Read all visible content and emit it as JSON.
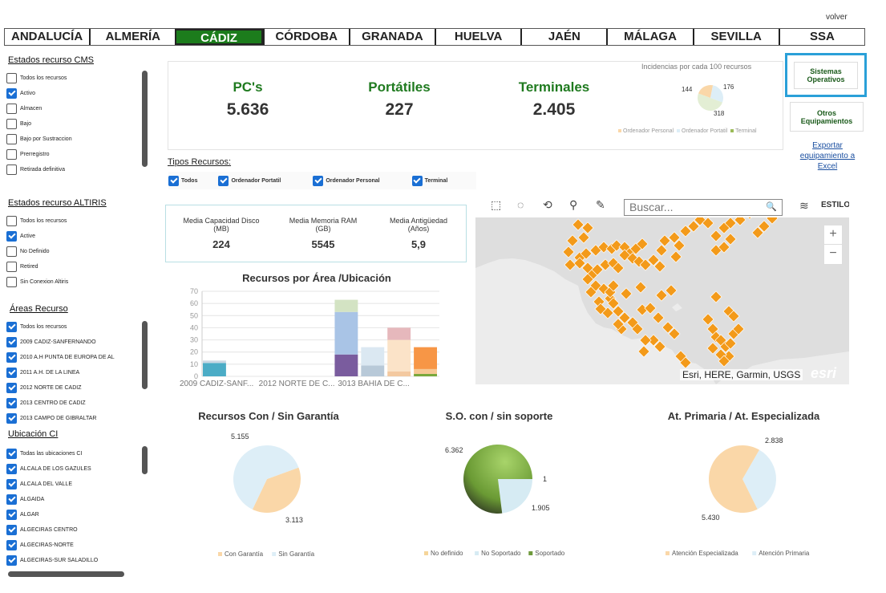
{
  "header": {
    "back_link": "volver"
  },
  "tabs": [
    {
      "label": "ANDALUCÍA",
      "active": false
    },
    {
      "label": "ALMERÍA",
      "active": false
    },
    {
      "label": "CÁDIZ",
      "active": true
    },
    {
      "label": "CÓRDOBA",
      "active": false
    },
    {
      "label": "GRANADA",
      "active": false
    },
    {
      "label": "HUELVA",
      "active": false
    },
    {
      "label": "JAÉN",
      "active": false
    },
    {
      "label": "MÁLAGA",
      "active": false
    },
    {
      "label": "SEVILLA",
      "active": false
    },
    {
      "label": "SSA",
      "active": false
    }
  ],
  "filters": {
    "cms": {
      "title": "Estados recurso CMS",
      "items": [
        {
          "label": "Todos los recursos",
          "checked": false
        },
        {
          "label": "Activo",
          "checked": true
        },
        {
          "label": "Almacen",
          "checked": false
        },
        {
          "label": "Bajo",
          "checked": false
        },
        {
          "label": "Bajo por Sustraccion",
          "checked": false
        },
        {
          "label": "Prerregistro",
          "checked": false
        },
        {
          "label": "Retirada definitiva",
          "checked": false
        }
      ]
    },
    "altiris": {
      "title": "Estados recurso ALTIRIS",
      "items": [
        {
          "label": "Todos los recursos",
          "checked": false
        },
        {
          "label": "Active",
          "checked": true
        },
        {
          "label": "No Definido",
          "checked": false
        },
        {
          "label": "Retired",
          "checked": false
        },
        {
          "label": "Sin Conexion Altiris",
          "checked": false
        }
      ]
    },
    "areas": {
      "title": "Áreas Recurso",
      "items": [
        {
          "label": "Todos los recursos",
          "checked": true
        },
        {
          "label": "2009 CADIZ-SANFERNANDO",
          "checked": true
        },
        {
          "label": "2010 A.H PUNTA DE EUROPA DE AL",
          "checked": true
        },
        {
          "label": "2011 A.H. DE LA LINEA",
          "checked": true
        },
        {
          "label": "2012 NORTE DE CADIZ",
          "checked": true
        },
        {
          "label": "2013 CENTRO DE CADIZ",
          "checked": true
        },
        {
          "label": "2013 CAMPO DE GIBRALTAR",
          "checked": true
        }
      ]
    },
    "ubicacion": {
      "title": "Ubicación CI",
      "items": [
        {
          "label": "Todas las ubicaciones CI",
          "checked": true
        },
        {
          "label": "ALCALA DE LOS GAZULES",
          "checked": true
        },
        {
          "label": "ALCALA DEL VALLE",
          "checked": true
        },
        {
          "label": "ALGAIDA",
          "checked": true
        },
        {
          "label": "ALGAR",
          "checked": true
        },
        {
          "label": "ALGECIRAS CENTRO",
          "checked": true
        },
        {
          "label": "ALGECIRAS-NORTE",
          "checked": true
        },
        {
          "label": "ALGECIRAS-SUR SALADILLO",
          "checked": true
        }
      ]
    }
  },
  "kpis": [
    {
      "label": "PC's",
      "value": "5.636"
    },
    {
      "label": "Portátiles",
      "value": "227"
    },
    {
      "label": "Terminales",
      "value": "2.405"
    }
  ],
  "incidencias": {
    "title": "Incidencias por cada 100 recursos",
    "labels": [
      "144",
      "176",
      "318"
    ],
    "legend": [
      "Ordenador Personal",
      "Ordenador Portatil",
      "Terminal"
    ]
  },
  "side_buttons": {
    "so": "Sistemas Operativos",
    "otros": "Otros Equipamientos",
    "export": "Exportar equipamiento a Excel"
  },
  "tipos": {
    "title": "Tipos Recursos:",
    "items": [
      {
        "label": "Todos",
        "checked": true
      },
      {
        "label": "Ordenador Portatil",
        "checked": true
      },
      {
        "label": "Ordenador Personal",
        "checked": true
      },
      {
        "label": "Terminal",
        "checked": true
      }
    ]
  },
  "medias": [
    {
      "label": "Media Capacidad Disco (MB)",
      "value": "224"
    },
    {
      "label": "Media Memoria RAM (GB)",
      "value": "5545"
    },
    {
      "label": "Media Antigüedad (Años)",
      "value": "5,9"
    }
  ],
  "map": {
    "search_placeholder": "Buscar...",
    "style_label": "ESTILO",
    "attribution": "Esri, HERE, Garmin, USGS",
    "logo": "esri",
    "zoom_in": "+",
    "zoom_out": "−",
    "point_color": "#f39a1a"
  },
  "colors": {
    "accent": "#1c7c1c",
    "highlight_border": "#2aa0d8",
    "map_point": "#f39a1a"
  },
  "chart_data": [
    {
      "type": "bar",
      "stacked": true,
      "title": "Recursos por Área /Ubicación",
      "categories": [
        "2009 CADIZ-SANF...",
        "2012 NORTE DE C...",
        "3013 BAHIA DE C..."
      ],
      "ylim": [
        0,
        70
      ],
      "yticks": [
        0,
        10,
        20,
        30,
        40,
        50,
        60,
        70
      ],
      "grid": true,
      "bars": [
        {
          "x": 0,
          "segments": [
            {
              "value": 11,
              "color": "#4bacc6"
            },
            {
              "value": 2,
              "color": "#c9d7e3"
            }
          ]
        },
        {
          "x": 5,
          "segments": [
            {
              "value": 18,
              "color": "#7a5c9e"
            },
            {
              "value": 35,
              "color": "#a9c4e6"
            },
            {
              "value": 10,
              "color": "#d3e3c3"
            }
          ]
        },
        {
          "x": 6,
          "segments": [
            {
              "value": 9,
              "color": "#b8c9d8"
            },
            {
              "value": 15,
              "color": "#dbe8f2"
            }
          ]
        },
        {
          "x": 7,
          "segments": [
            {
              "value": 4,
              "color": "#f3c9a0"
            },
            {
              "value": 26,
              "color": "#fbe3c8"
            },
            {
              "value": 10,
              "color": "#e6b8bc"
            }
          ]
        },
        {
          "x": 8,
          "segments": [
            {
              "value": 2,
              "color": "#7aa83c"
            },
            {
              "value": 4,
              "color": "#f6c894"
            },
            {
              "value": 18,
              "color": "#f79646"
            }
          ]
        }
      ]
    },
    {
      "type": "pie",
      "title": "Recursos Con / Sin Garantía",
      "slices": [
        {
          "label": "Con Garantía",
          "value": 3113,
          "color": "#fad7a8"
        },
        {
          "label": "Sin Garantía",
          "value": 5155,
          "color": "#ddeef7"
        }
      ],
      "value_labels": [
        "5.155",
        "3.113"
      ]
    },
    {
      "type": "pie",
      "title": "S.O. con / sin soporte",
      "slices": [
        {
          "label": "No definido",
          "value": 1,
          "color": "#f5d59a"
        },
        {
          "label": "No Soportado",
          "value": 1905,
          "color": "#d6ebf3"
        },
        {
          "label": "Soportado",
          "value": 6362,
          "color": "#6e9a3c"
        }
      ],
      "value_labels": [
        "6.362",
        "1",
        "1.905"
      ]
    },
    {
      "type": "pie",
      "title": "At. Primaria / At. Especializada",
      "slices": [
        {
          "label": "Atención Especializada",
          "value": 5430,
          "color": "#fad7a8"
        },
        {
          "label": "Atención Primaria",
          "value": 2838,
          "color": "#ddeef7"
        }
      ],
      "value_labels": [
        "2.838",
        "5.430"
      ]
    },
    {
      "type": "pie",
      "title": "",
      "slices": [
        {
          "label": "Ordenador Personal",
          "value": 144,
          "color": "#fad7a8"
        },
        {
          "label": "Ordenador Portatil",
          "value": 176,
          "color": "#ddeef7"
        },
        {
          "label": "Terminal",
          "value": 318,
          "color": "#e3eed4"
        }
      ],
      "value_labels": [
        "144",
        "176",
        "318"
      ]
    }
  ]
}
